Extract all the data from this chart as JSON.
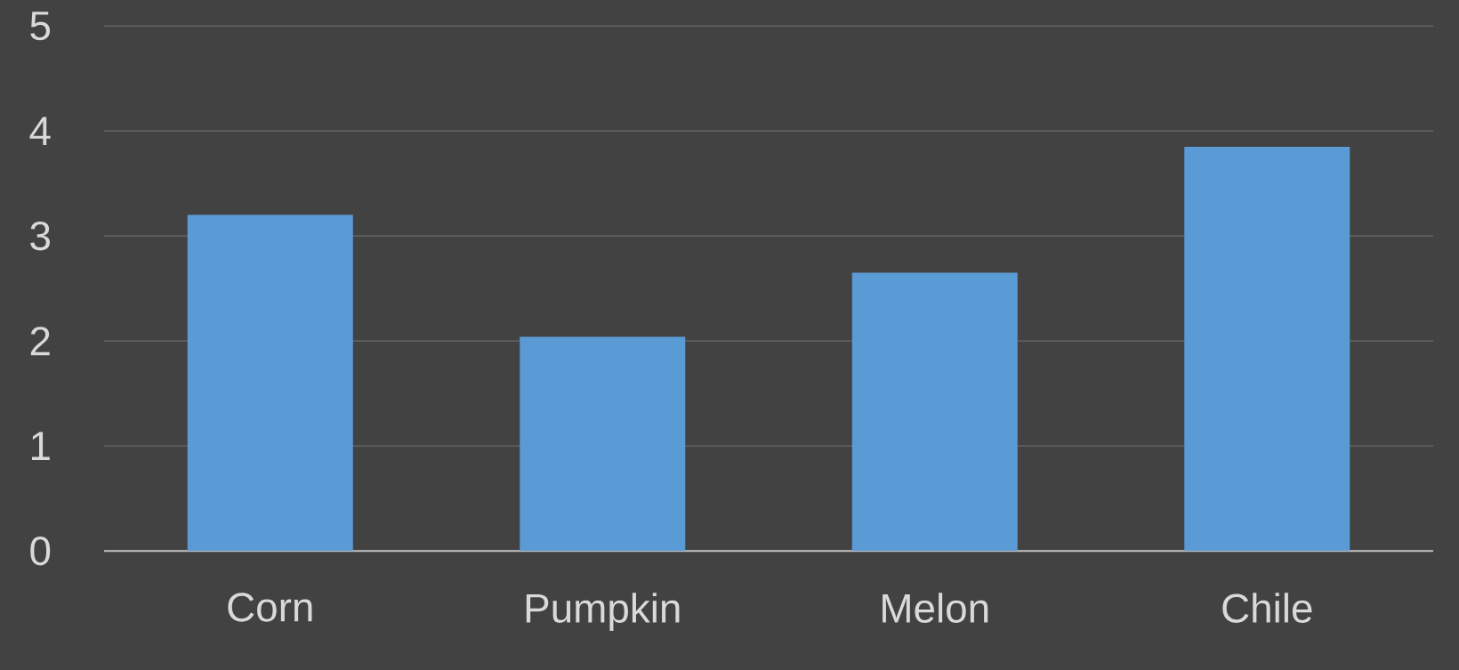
{
  "chart_data": {
    "type": "bar",
    "categories": [
      "Corn",
      "Pumpkin",
      "Melon",
      "Chile"
    ],
    "values": [
      3.2,
      2.04,
      2.65,
      3.85
    ],
    "color": "#5b9bd5",
    "ylim": [
      0,
      5
    ],
    "yticks": [
      0,
      1,
      2,
      3,
      4,
      5
    ],
    "grid": "y"
  }
}
